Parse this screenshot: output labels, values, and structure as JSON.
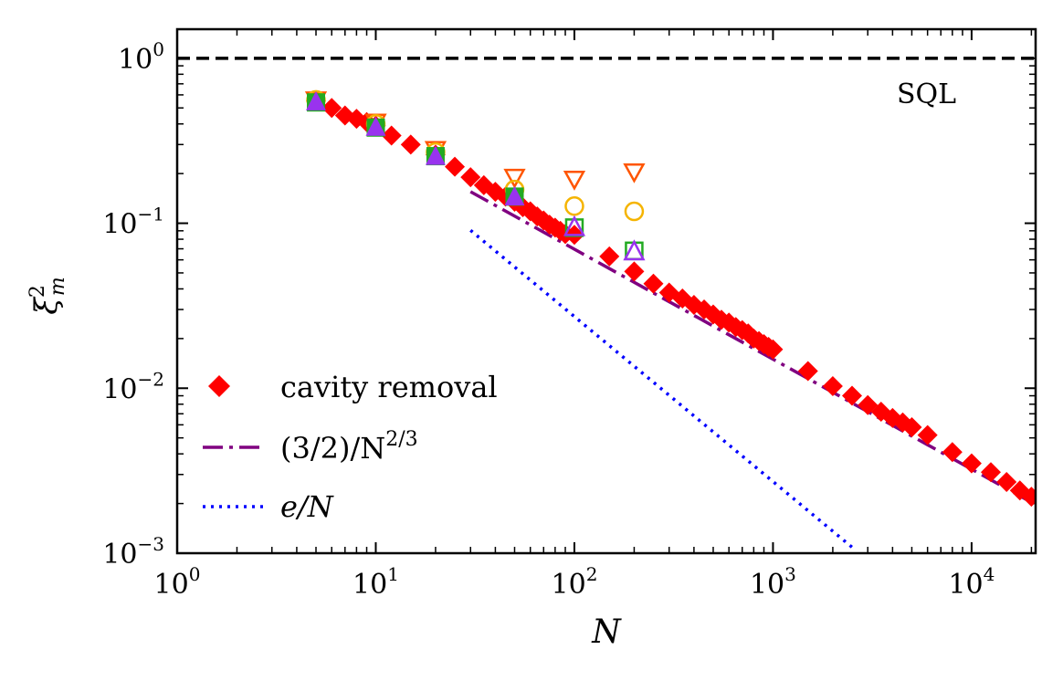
{
  "chart_data": {
    "type": "scatter",
    "xscale": "log",
    "yscale": "log",
    "xlim": [
      1,
      21000
    ],
    "ylim": [
      0.001,
      1.5
    ],
    "xlabel": "N",
    "ylabel_base": "ξ",
    "ylabel_sup": "2",
    "ylabel_sub": "m",
    "x_ticks": [
      {
        "value": 1,
        "base": "10",
        "exp": "0"
      },
      {
        "value": 10,
        "base": "10",
        "exp": "1"
      },
      {
        "value": 100,
        "base": "10",
        "exp": "2"
      },
      {
        "value": 1000,
        "base": "10",
        "exp": "3"
      },
      {
        "value": 10000,
        "base": "10",
        "exp": "4"
      }
    ],
    "y_ticks": [
      {
        "value": 1,
        "base": "10",
        "exp": "0"
      },
      {
        "value": 0.1,
        "base": "10",
        "exp": "−1"
      },
      {
        "value": 0.01,
        "base": "10",
        "exp": "−2"
      },
      {
        "value": 0.001,
        "base": "10",
        "exp": "−3"
      }
    ],
    "sql": {
      "value": 1,
      "label": "SQL",
      "color": "#000000"
    },
    "cavity_removal": {
      "name": "cavity removal",
      "color": "#ff0000",
      "x": [
        5,
        6,
        7,
        8,
        9,
        10,
        12,
        15,
        20,
        25,
        30,
        35,
        40,
        45,
        50,
        55,
        60,
        65,
        70,
        75,
        80,
        85,
        90,
        100,
        150,
        200,
        250,
        300,
        350,
        400,
        450,
        500,
        550,
        600,
        650,
        700,
        750,
        800,
        850,
        900,
        950,
        1000,
        1500,
        2000,
        2500,
        3000,
        3500,
        4000,
        4500,
        5000,
        6000,
        8000,
        10000,
        12500,
        15000,
        17500,
        20000
      ],
      "y": [
        0.55,
        0.5,
        0.45,
        0.43,
        0.41,
        0.39,
        0.34,
        0.3,
        0.26,
        0.22,
        0.19,
        0.17,
        0.155,
        0.145,
        0.135,
        0.125,
        0.118,
        0.11,
        0.104,
        0.098,
        0.094,
        0.09,
        0.086,
        0.085,
        0.063,
        0.051,
        0.043,
        0.038,
        0.035,
        0.032,
        0.03,
        0.028,
        0.026,
        0.025,
        0.0235,
        0.0225,
        0.0215,
        0.02,
        0.0193,
        0.0185,
        0.0178,
        0.0172,
        0.0127,
        0.0103,
        0.009,
        0.0079,
        0.0072,
        0.0066,
        0.0062,
        0.0058,
        0.0052,
        0.0041,
        0.0035,
        0.0031,
        0.0027,
        0.0024,
        0.0022
      ]
    },
    "fit_curve": {
      "name": "(3/2)/N",
      "name_sup": "2/3",
      "coefficient": 1.5,
      "exponent": -0.6667,
      "x_range": [
        30,
        21000
      ],
      "color": "#800080"
    },
    "e_over_N": {
      "name_e": "e",
      "name_rest": "/N",
      "coefficient": 2.718,
      "exponent": -1,
      "x_range": [
        30,
        2500
      ],
      "color": "#0000ff"
    },
    "marker_series": [
      {
        "marker": "triangle-down-open",
        "color": "#ff5500",
        "x": [
          5,
          10,
          20,
          50,
          100,
          200
        ],
        "y": [
          0.56,
          0.41,
          0.28,
          0.19,
          0.185,
          0.205
        ]
      },
      {
        "marker": "circle-open",
        "color": "#f5b400",
        "x": [
          5,
          10,
          20,
          50,
          100,
          200
        ],
        "y": [
          0.56,
          0.4,
          0.27,
          0.16,
          0.127,
          0.118
        ]
      },
      {
        "marker": "square-filled",
        "color": "#22aa22",
        "x": [
          5,
          10,
          20,
          50
        ],
        "y": [
          0.54,
          0.38,
          0.255,
          0.145
        ]
      },
      {
        "marker": "square-open",
        "color": "#22aa22",
        "x": [
          100,
          200
        ],
        "y": [
          0.094,
          0.068
        ]
      },
      {
        "marker": "triangle-up-filled",
        "color": "#9933ee",
        "x": [
          5,
          10,
          20,
          50
        ],
        "y": [
          0.535,
          0.375,
          0.25,
          0.142
        ]
      },
      {
        "marker": "triangle-up-open",
        "color": "#9933ee",
        "x": [
          100,
          200
        ],
        "y": [
          0.094,
          0.067
        ]
      }
    ]
  }
}
